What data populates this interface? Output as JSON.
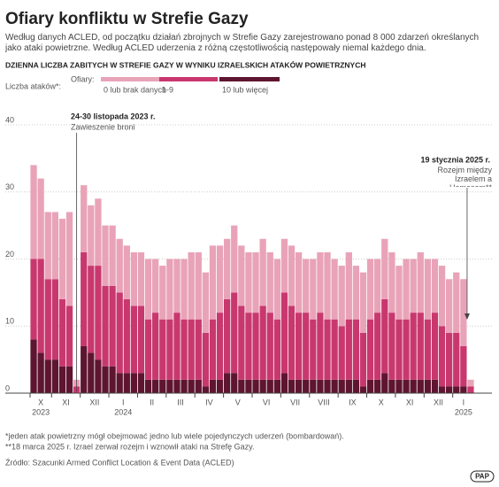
{
  "header": {
    "title": "Ofiary konfliktu w Strefie Gazy",
    "subtitle": "Według danych ACLED, od początku działań zbrojnych w Strefie Gazy zarejestrowano ponad 8 000 zdarzeń określanych jako ataki powietrzne. Według ACLED uderzenia z różną częstotliwością następowały niemal każdego dnia."
  },
  "chart_data": {
    "type": "stacked-bar",
    "title": "DZIENNA LICZBA ZABITYCH W STREFIE GAZY W WYNIKU IZRAELSKICH ATAKÓW POWIETRZNYCH",
    "y_label": "Liczba ataków*:",
    "legend_title": "Ofiary:",
    "categories": [
      "X",
      null,
      null,
      "XI",
      null,
      null,
      null,
      "XII",
      null,
      null,
      null,
      "I",
      null,
      null,
      null,
      "II",
      null,
      null,
      null,
      "III",
      null,
      null,
      null,
      "IV",
      null,
      null,
      null,
      "V",
      null,
      null,
      null,
      "VI",
      null,
      null,
      null,
      "VII",
      null,
      null,
      null,
      "VIII",
      null,
      null,
      null,
      "IX",
      null,
      null,
      null,
      "X",
      null,
      null,
      null,
      "XI",
      null,
      null,
      null,
      "XII",
      null,
      null,
      null,
      "I",
      null,
      null
    ],
    "years": [
      {
        "label": "2023",
        "category_index": 0
      },
      {
        "label": "2024",
        "category_index": 11
      },
      {
        "label": "2025",
        "category_index": 59
      }
    ],
    "series": [
      {
        "name": "10 lub więcej",
        "color": "#5e1530",
        "values": [
          8,
          6,
          5,
          5,
          4,
          4,
          0,
          7,
          6,
          5,
          4,
          4,
          3,
          3,
          3,
          3,
          2,
          2,
          2,
          2,
          2,
          2,
          2,
          2,
          1,
          2,
          2,
          3,
          3,
          2,
          2,
          2,
          2,
          2,
          2,
          3,
          2,
          2,
          2,
          2,
          2,
          2,
          2,
          2,
          2,
          2,
          1,
          2,
          2,
          3,
          2,
          2,
          2,
          2,
          2,
          2,
          2,
          1,
          1,
          1,
          1,
          0
        ]
      },
      {
        "name": "1-9",
        "color": "#c8386e",
        "values": [
          12,
          14,
          12,
          12,
          10,
          9,
          1,
          14,
          13,
          14,
          12,
          12,
          12,
          11,
          10,
          10,
          9,
          10,
          9,
          9,
          10,
          9,
          9,
          9,
          8,
          9,
          10,
          11,
          12,
          11,
          10,
          10,
          11,
          10,
          9,
          12,
          11,
          10,
          10,
          9,
          10,
          9,
          9,
          8,
          9,
          9,
          8,
          9,
          10,
          11,
          10,
          9,
          9,
          10,
          10,
          9,
          10,
          9,
          8,
          8,
          6,
          1
        ]
      },
      {
        "name": "0 lub brak danych",
        "color": "#e9a3b8",
        "values": [
          14,
          12,
          10,
          10,
          12,
          14,
          1,
          10,
          9,
          10,
          9,
          9,
          8,
          8,
          8,
          8,
          9,
          8,
          8,
          9,
          8,
          9,
          10,
          10,
          9,
          11,
          10,
          9,
          10,
          9,
          9,
          9,
          10,
          9,
          9,
          8,
          9,
          9,
          8,
          9,
          9,
          10,
          9,
          9,
          10,
          8,
          9,
          9,
          8,
          9,
          9,
          8,
          9,
          8,
          9,
          9,
          8,
          9,
          8,
          9,
          10,
          1
        ]
      }
    ],
    "ylim": [
      0,
      40
    ],
    "yticks": [
      0,
      10,
      20,
      30,
      40
    ],
    "annotations": [
      {
        "title": "24-30 listopada 2023 r.",
        "text": "Zawieszenie broni",
        "category_index": 6
      },
      {
        "title": "19 stycznia 2025 r.",
        "text": "Rozejm między Izraelem a Hamasem**",
        "category_index": 61
      }
    ]
  },
  "footnotes": [
    "*jeden atak powietrzny mógł obejmować jedno lub wiele pojedynczych uderzeń (bombardowań).",
    "**18 marca 2025 r. Izrael zerwał rozejm i wznowił ataki na Strefę Gazy."
  ],
  "source": "Źródło: Szacunki Armed Conflict Location & Event Data (ACLED)",
  "logo": "PAP"
}
